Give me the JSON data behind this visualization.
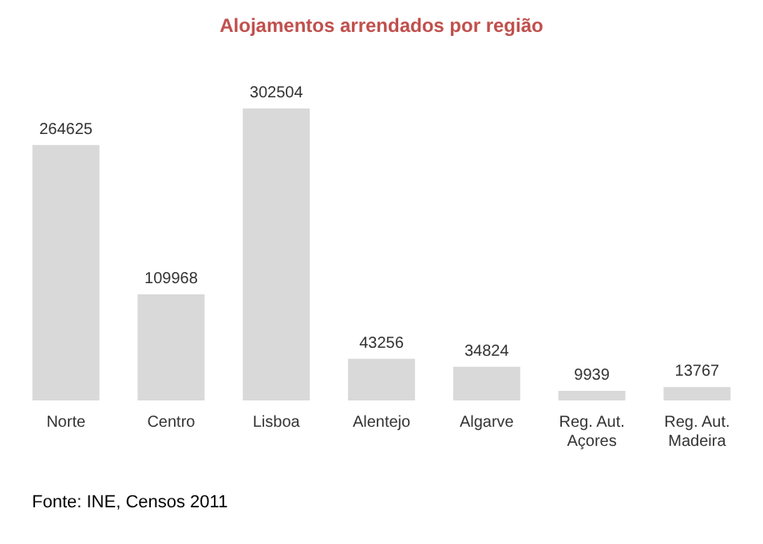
{
  "chart_data": {
    "type": "bar",
    "title": "Alojamentos arrendados por região",
    "categories": [
      "Norte",
      "Centro",
      "Lisboa",
      "Alentejo",
      "Algarve",
      "Reg. Aut. Açores",
      "Reg. Aut. Madeira"
    ],
    "values": [
      264625,
      109968,
      302504,
      43256,
      34824,
      9939,
      13767
    ],
    "color": "#d9d9d9",
    "data_labels": true,
    "annotations": [
      "Fonte: INE, Censos 2011"
    ]
  }
}
